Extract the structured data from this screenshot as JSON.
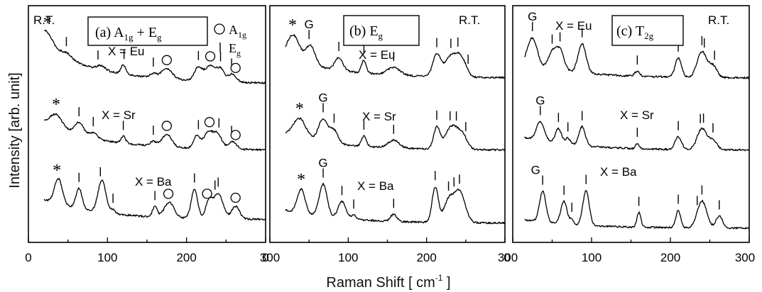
{
  "figure": {
    "ylabel": "Intensity [arb. unit]",
    "xlabel": "Raman Shift [ cm",
    "xlabel_sup": "-1",
    "xlabel_end": " ]",
    "xticks": [
      "0",
      "100",
      "200",
      "300"
    ],
    "xtick_values": [
      0,
      100,
      200,
      300
    ]
  },
  "chart_data": [
    {
      "type": "line",
      "panel_label": "(a)",
      "mode_label": "A1g + Eg",
      "temperature": "R.T.",
      "xlim": [
        0,
        300
      ],
      "legend": [
        {
          "symbol": "circle",
          "label": "A1g"
        },
        {
          "symbol": "bar",
          "label": "Eg"
        }
      ],
      "series": [
        {
          "name": "X = Eu",
          "curve_x_start": 20,
          "star_x": 24,
          "peaks": [
            {
              "x": 22,
              "h": 1.5,
              "w": 9
            },
            {
              "x": 48,
              "h": 0.5,
              "w": 7
            },
            {
              "x": 92,
              "h": 0.35,
              "w": 5
            },
            {
              "x": 120,
              "h": 0.8,
              "w": 3
            },
            {
              "x": 158,
              "h": 0.35,
              "w": 4
            },
            {
              "x": 175,
              "h": 0.9,
              "w": 7
            },
            {
              "x": 215,
              "h": 1.2,
              "w": 5
            },
            {
              "x": 230,
              "h": 1.4,
              "w": 6
            },
            {
              "x": 243,
              "h": 1.1,
              "w": 5
            },
            {
              "x": 258,
              "h": 0.7,
              "w": 5
            }
          ],
          "bar_marks": [
            48,
            88,
            121,
            158,
            215,
            243,
            257
          ],
          "circle_marks": [
            175,
            230,
            262
          ]
        },
        {
          "name": "X = Sr",
          "curve_x_start": 20,
          "star_x": 35,
          "peaks": [
            {
              "x": 35,
              "h": 1.2,
              "w": 8
            },
            {
              "x": 64,
              "h": 1.1,
              "w": 6
            },
            {
              "x": 82,
              "h": 0.5,
              "w": 5
            },
            {
              "x": 120,
              "h": 0.6,
              "w": 3
            },
            {
              "x": 158,
              "h": 0.4,
              "w": 4
            },
            {
              "x": 175,
              "h": 1.1,
              "w": 6
            },
            {
              "x": 213,
              "h": 1.1,
              "w": 4
            },
            {
              "x": 228,
              "h": 1.5,
              "w": 6
            },
            {
              "x": 240,
              "h": 1.2,
              "w": 5
            },
            {
              "x": 258,
              "h": 0.7,
              "w": 5
            }
          ],
          "bar_marks": [
            64,
            82,
            120,
            158,
            215,
            241,
            257
          ],
          "circle_marks": [
            175,
            229,
            262
          ]
        },
        {
          "name": "X = Ba",
          "curve_x_start": 20,
          "star_x": 36,
          "peaks": [
            {
              "x": 38,
              "h": 2.0,
              "w": 5
            },
            {
              "x": 64,
              "h": 1.6,
              "w": 4
            },
            {
              "x": 93,
              "h": 2.5,
              "w": 5
            },
            {
              "x": 107,
              "h": 0.3,
              "w": 3
            },
            {
              "x": 160,
              "h": 0.8,
              "w": 3
            },
            {
              "x": 178,
              "h": 1.2,
              "w": 6
            },
            {
              "x": 210,
              "h": 2.3,
              "w": 4
            },
            {
              "x": 228,
              "h": 1.3,
              "w": 4
            },
            {
              "x": 240,
              "h": 2.0,
              "w": 6
            },
            {
              "x": 262,
              "h": 1.0,
              "w": 5
            }
          ],
          "bar_marks": [
            64,
            91,
            107,
            160,
            210,
            236,
            240
          ],
          "circle_marks": [
            177,
            226,
            262
          ]
        }
      ]
    },
    {
      "type": "line",
      "panel_label": "(b)",
      "mode_label": "Eg",
      "temperature": "R.T.",
      "xlim": [
        0,
        300
      ],
      "series": [
        {
          "name": "X = Eu",
          "curve_x_start": 20,
          "star_x": 29,
          "g_x": 50,
          "peaks": [
            {
              "x": 30,
              "h": 2.0,
              "w": 8
            },
            {
              "x": 52,
              "h": 1.5,
              "w": 6
            },
            {
              "x": 88,
              "h": 1.0,
              "w": 5
            },
            {
              "x": 120,
              "h": 1.0,
              "w": 3
            },
            {
              "x": 158,
              "h": 0.6,
              "w": 8
            },
            {
              "x": 213,
              "h": 1.7,
              "w": 5
            },
            {
              "x": 232,
              "h": 1.7,
              "w": 8
            },
            {
              "x": 245,
              "h": 1.2,
              "w": 6
            }
          ],
          "bar_marks": [
            50,
            88,
            120,
            158,
            213,
            231,
            240,
            253
          ]
        },
        {
          "name": "X = Sr",
          "curve_x_start": 20,
          "star_x": 38,
          "g_x": 68,
          "peaks": [
            {
              "x": 38,
              "h": 1.5,
              "w": 8
            },
            {
              "x": 68,
              "h": 1.8,
              "w": 6
            },
            {
              "x": 82,
              "h": 1.0,
              "w": 5
            },
            {
              "x": 120,
              "h": 0.8,
              "w": 3
            },
            {
              "x": 158,
              "h": 0.6,
              "w": 7
            },
            {
              "x": 213,
              "h": 1.7,
              "w": 4
            },
            {
              "x": 232,
              "h": 1.8,
              "w": 8
            },
            {
              "x": 246,
              "h": 1.0,
              "w": 6
            }
          ],
          "bar_marks": [
            68,
            82,
            120,
            158,
            213,
            230,
            238,
            250
          ]
        },
        {
          "name": "X = Ba",
          "curve_x_start": 20,
          "star_x": 40,
          "g_x": 68,
          "peaks": [
            {
              "x": 40,
              "h": 1.7,
              "w": 5
            },
            {
              "x": 68,
              "h": 2.3,
              "w": 5
            },
            {
              "x": 92,
              "h": 1.2,
              "w": 5
            },
            {
              "x": 107,
              "h": 0.3,
              "w": 3
            },
            {
              "x": 158,
              "h": 0.5,
              "w": 4
            },
            {
              "x": 211,
              "h": 2.5,
              "w": 4
            },
            {
              "x": 228,
              "h": 1.5,
              "w": 6
            },
            {
              "x": 242,
              "h": 2.2,
              "w": 7
            }
          ],
          "bar_marks": [
            68,
            92,
            107,
            158,
            211,
            228,
            235,
            242
          ]
        }
      ]
    },
    {
      "type": "line",
      "panel_label": "(c)",
      "mode_label": "T2g",
      "temperature": "R.T.",
      "xlim": [
        0,
        300
      ],
      "series": [
        {
          "name": "X = Eu",
          "curve_x_start": 15,
          "g_x": 25,
          "peaks": [
            {
              "x": 25,
              "h": 2.2,
              "w": 6
            },
            {
              "x": 50,
              "h": 1.3,
              "w": 5
            },
            {
              "x": 60,
              "h": 1.6,
              "w": 5
            },
            {
              "x": 88,
              "h": 2.3,
              "w": 5
            },
            {
              "x": 158,
              "h": 0.4,
              "w": 3
            },
            {
              "x": 210,
              "h": 1.5,
              "w": 4
            },
            {
              "x": 240,
              "h": 2.0,
              "w": 6
            },
            {
              "x": 254,
              "h": 0.9,
              "w": 5
            }
          ],
          "bar_marks": [
            25,
            50,
            60,
            88,
            158,
            210,
            240,
            243,
            256
          ]
        },
        {
          "name": "X = Sr",
          "curve_x_start": 15,
          "g_x": 35,
          "peaks": [
            {
              "x": 35,
              "h": 1.8,
              "w": 5
            },
            {
              "x": 58,
              "h": 1.4,
              "w": 4
            },
            {
              "x": 70,
              "h": 0.6,
              "w": 3
            },
            {
              "x": 88,
              "h": 1.8,
              "w": 4
            },
            {
              "x": 158,
              "h": 0.5,
              "w": 2
            },
            {
              "x": 210,
              "h": 1.2,
              "w": 4
            },
            {
              "x": 240,
              "h": 2.0,
              "w": 6
            },
            {
              "x": 254,
              "h": 0.9,
              "w": 5
            }
          ],
          "bar_marks": [
            35,
            58,
            70,
            88,
            158,
            210,
            238,
            242,
            254
          ]
        },
        {
          "name": "X = Ba",
          "curve_x_start": 15,
          "g_x": 38,
          "peaks": [
            {
              "x": 38,
              "h": 2.3,
              "w": 4
            },
            {
              "x": 65,
              "h": 1.7,
              "w": 4
            },
            {
              "x": 75,
              "h": 0.4,
              "w": 2
            },
            {
              "x": 93,
              "h": 2.6,
              "w": 4
            },
            {
              "x": 160,
              "h": 1.1,
              "w": 2.5
            },
            {
              "x": 210,
              "h": 1.3,
              "w": 3
            },
            {
              "x": 240,
              "h": 2.0,
              "w": 6
            },
            {
              "x": 262,
              "h": 0.9,
              "w": 4
            }
          ],
          "bar_marks": [
            38,
            65,
            75,
            93,
            160,
            210,
            234,
            240,
            262
          ]
        }
      ]
    }
  ],
  "annotations": {
    "star": "*",
    "g": "G"
  }
}
